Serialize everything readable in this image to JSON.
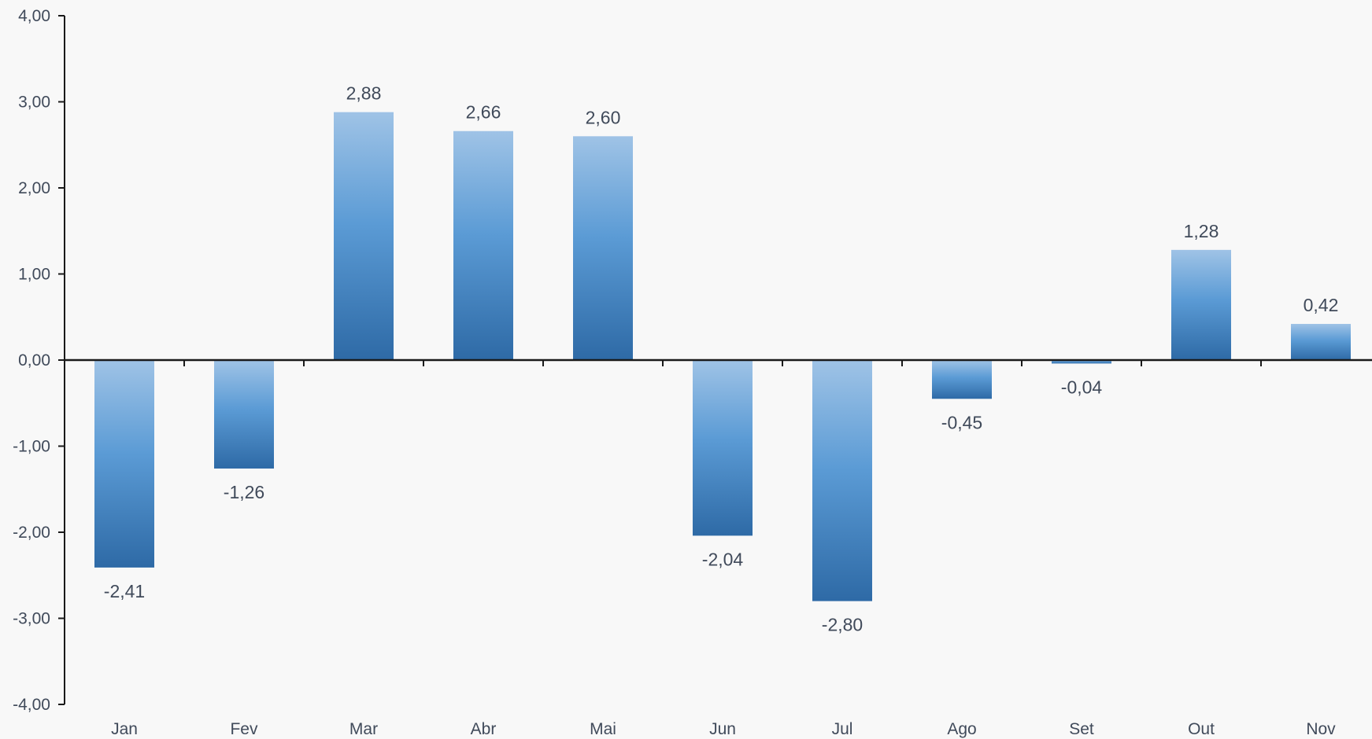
{
  "chart_data": {
    "type": "bar",
    "categories": [
      "Jan",
      "Fev",
      "Mar",
      "Abr",
      "Mai",
      "Jun",
      "Jul",
      "Ago",
      "Set",
      "Out",
      "Nov"
    ],
    "values": [
      -2.41,
      -1.26,
      2.88,
      2.66,
      2.6,
      -2.04,
      -2.8,
      -0.45,
      -0.04,
      1.28,
      0.42
    ],
    "value_labels": [
      "-2,41",
      "-1,26",
      "2,88",
      "2,66",
      "2,60",
      "-2,04",
      "-2,80",
      "-0,45",
      "-0,04",
      "1,28",
      "0,42"
    ],
    "y_ticks": [
      4,
      3,
      2,
      1,
      0,
      -1,
      -2,
      -3,
      -4
    ],
    "y_tick_labels": [
      "4,00",
      "3,00",
      "2,00",
      "1,00",
      "0,00",
      "-1,00",
      "-2,00",
      "-3,00",
      "-4,00"
    ],
    "ylim": [
      -4,
      4
    ],
    "grid": false,
    "legend": "none",
    "colors": {
      "bar_top": "#9fc3e6",
      "bar_mid": "#5b9bd5",
      "bar_bottom": "#2e6aa6",
      "axis": "#1a1a1a",
      "text": "#404a5a",
      "background": "#f8f8f8"
    }
  }
}
